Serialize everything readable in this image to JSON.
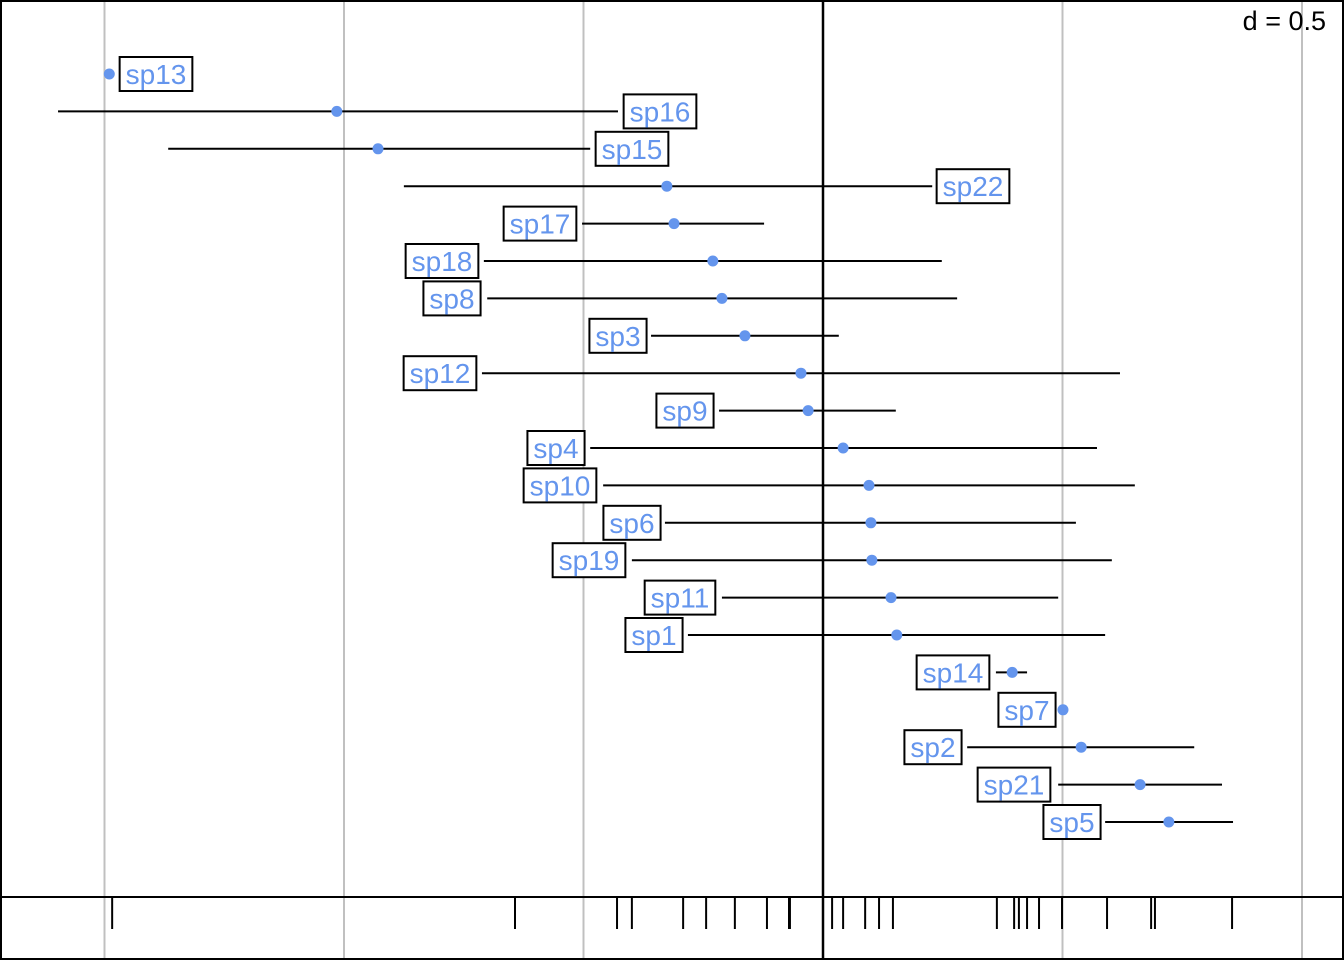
{
  "chart_data": {
    "type": "scatter",
    "title": "",
    "scale_label": "d = 0.5",
    "xlim": [
      -1.72,
      1.09
    ],
    "grid_x": [
      -1.5,
      -1.0,
      -0.5,
      0,
      0.5,
      1.0
    ],
    "grid": true,
    "point_color": "#6495ED",
    "label_color": "#6495ED",
    "series": [
      {
        "name": "sp13",
        "value": -1.49,
        "low": null,
        "high": null
      },
      {
        "name": "sp16",
        "value": -1.015,
        "low": -1.597,
        "high": -0.428
      },
      {
        "name": "sp15",
        "value": -0.929,
        "low": -1.367,
        "high": -0.486
      },
      {
        "name": "sp22",
        "value": -0.326,
        "low": -0.875,
        "high": 0.228
      },
      {
        "name": "sp17",
        "value": -0.311,
        "low": -0.503,
        "high": -0.123
      },
      {
        "name": "sp18",
        "value": -0.23,
        "low": -0.708,
        "high": 0.248
      },
      {
        "name": "sp8",
        "value": -0.211,
        "low": -0.701,
        "high": 0.28
      },
      {
        "name": "sp3",
        "value": -0.163,
        "low": -0.359,
        "high": 0.033
      },
      {
        "name": "sp12",
        "value": -0.046,
        "low": -0.712,
        "high": 0.62
      },
      {
        "name": "sp9",
        "value": -0.031,
        "low": -0.217,
        "high": 0.152
      },
      {
        "name": "sp4",
        "value": 0.042,
        "low": -0.486,
        "high": 0.572
      },
      {
        "name": "sp10",
        "value": 0.096,
        "low": -0.459,
        "high": 0.651
      },
      {
        "name": "sp6",
        "value": 0.1,
        "low": -0.33,
        "high": 0.528
      },
      {
        "name": "sp19",
        "value": 0.102,
        "low": -0.399,
        "high": 0.603
      },
      {
        "name": "sp11",
        "value": 0.142,
        "low": -0.211,
        "high": 0.491
      },
      {
        "name": "sp1",
        "value": 0.154,
        "low": -0.282,
        "high": 0.589
      },
      {
        "name": "sp14",
        "value": 0.395,
        "low": 0.361,
        "high": 0.426
      },
      {
        "name": "sp7",
        "value": 0.501,
        "low": null,
        "high": null
      },
      {
        "name": "sp2",
        "value": 0.539,
        "low": 0.301,
        "high": 0.775
      },
      {
        "name": "sp21",
        "value": 0.662,
        "low": 0.491,
        "high": 0.833
      },
      {
        "name": "sp5",
        "value": 0.722,
        "low": 0.589,
        "high": 0.856
      }
    ],
    "rug": [
      -1.484,
      -0.643,
      -0.43,
      -0.399,
      -0.292,
      -0.244,
      -0.184,
      -0.117,
      -0.071,
      -0.069,
      0.019,
      0.042,
      0.088,
      0.117,
      0.146,
      0.363,
      0.399,
      0.409,
      0.426,
      0.451,
      0.499,
      0.593,
      0.685,
      0.693,
      0.854
    ]
  }
}
